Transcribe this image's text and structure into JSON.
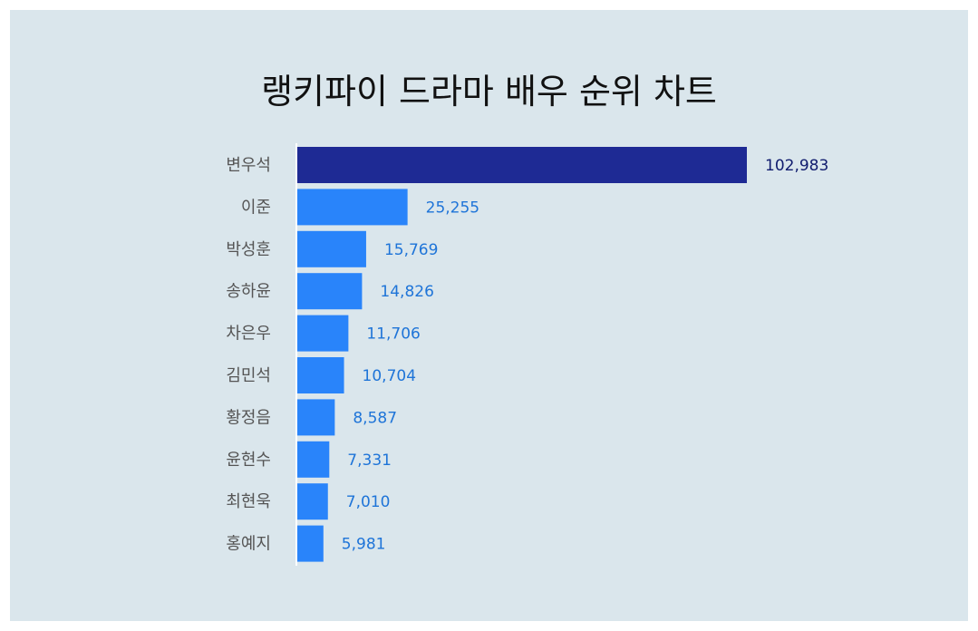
{
  "chart_data": {
    "type": "bar",
    "orientation": "horizontal",
    "title": "랭키파이 드라마 배우 순위 차트",
    "categories": [
      "변우석",
      "이준",
      "박성훈",
      "송하윤",
      "차은우",
      "김민석",
      "황정음",
      "윤현수",
      "최현욱",
      "홍예지"
    ],
    "values": [
      102983,
      25255,
      15769,
      14826,
      11706,
      10704,
      8587,
      7331,
      7010,
      5981
    ],
    "value_labels": [
      "102,983",
      "25,255",
      "15,769",
      "14,826",
      "11,706",
      "10,704",
      "8,587",
      "7,331",
      "7,010",
      "5,981"
    ],
    "xlim": [
      0,
      102983
    ],
    "grid": false,
    "legend": "none",
    "colors": {
      "highlight_bar": "#1e2a94",
      "bar": "#2984fa",
      "highlight_label": "#101c6e",
      "label": "#1e74d8",
      "axis": "#ffffff",
      "background": "#dae6ec"
    }
  }
}
